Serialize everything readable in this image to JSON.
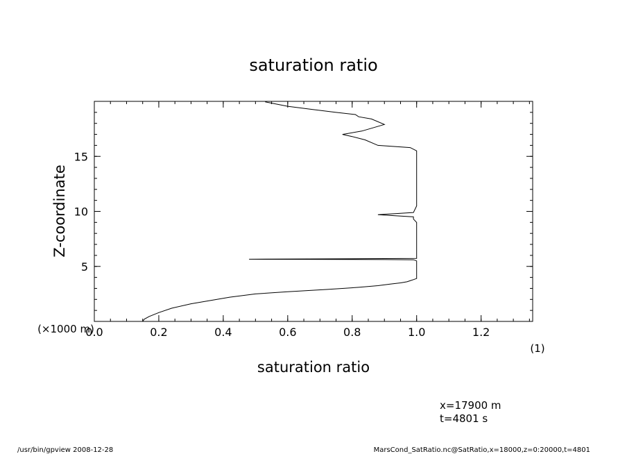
{
  "chart_data": {
    "type": "line",
    "title": "saturation ratio",
    "xlabel": "saturation ratio",
    "ylabel": "Z-coordinate",
    "x_unit": "(1)",
    "y_unit": "(×1000 m)",
    "xlim": [
      0,
      1.36
    ],
    "ylim": [
      0,
      20
    ],
    "x_ticks": [
      0.0,
      0.2,
      0.4,
      0.6,
      0.8,
      1.0,
      1.2
    ],
    "x_tick_labels": [
      "0.0",
      "0.2",
      "0.4",
      "0.6",
      "0.8",
      "1.0",
      "1.2"
    ],
    "y_ticks": [
      5,
      10,
      15
    ],
    "y_tick_labels": [
      "5",
      "10",
      "15"
    ],
    "grid": false,
    "series": [
      {
        "x": [
          0.15,
          0.155,
          0.17,
          0.2,
          0.24,
          0.3,
          0.36,
          0.42,
          0.5,
          0.6,
          0.72,
          0.82,
          0.88,
          0.92,
          0.95,
          0.97,
          0.98,
          0.99,
          1.0,
          1.0,
          0.99,
          0.9,
          0.48,
          1.0,
          1.0,
          1.0,
          1.0,
          1.0,
          0.99,
          0.99,
          0.88,
          0.99,
          1.0,
          1.0,
          1.0,
          1.0,
          0.98,
          0.88,
          0.84,
          0.8,
          0.77,
          0.83,
          0.9,
          0.86,
          0.82,
          0.81,
          0.75,
          0.68,
          0.6,
          0.53
        ],
        "y": [
          0,
          0.2,
          0.45,
          0.8,
          1.2,
          1.6,
          1.9,
          2.2,
          2.5,
          2.7,
          2.9,
          3.1,
          3.25,
          3.4,
          3.5,
          3.6,
          3.7,
          3.8,
          3.9,
          5.5,
          5.6,
          5.62,
          5.65,
          5.72,
          6.0,
          7.0,
          8.0,
          9.0,
          9.3,
          9.5,
          9.7,
          9.9,
          10.5,
          12.0,
          14.0,
          15.5,
          15.8,
          16.0,
          16.5,
          16.8,
          17.0,
          17.3,
          17.9,
          18.4,
          18.6,
          18.8,
          19.0,
          19.25,
          19.55,
          19.95
        ]
      }
    ]
  },
  "info": {
    "coord_x": "x=17900  m",
    "coord_t": "t=4801  s"
  },
  "footer": {
    "left": "/usr/bin/gpview   2008-12-28",
    "right": "MarsCond_SatRatio.nc@SatRatio,x=18000,z=0:20000,t=4801"
  }
}
